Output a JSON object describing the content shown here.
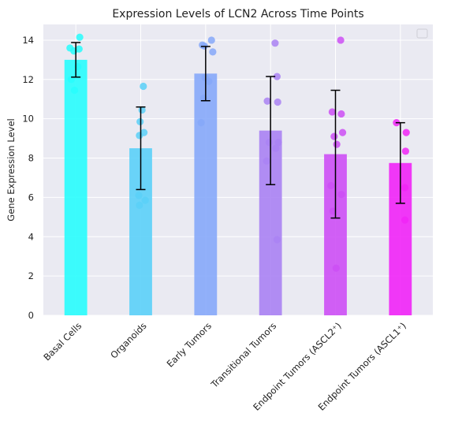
{
  "chart_data": {
    "type": "bar",
    "title": "Expression Levels of LCN2 Across Time Points",
    "xlabel": "",
    "ylabel": "Gene Expression Level",
    "ylim": [
      0,
      14.8
    ],
    "yticks": [
      0,
      2,
      4,
      6,
      8,
      10,
      12,
      14
    ],
    "grid": true,
    "legend": "top-right (empty)",
    "categories": [
      "Basal Cells",
      "Organoids",
      "Early Tumors",
      "Transitional Tumors",
      "Endpoint Tumors (ASCL2⁺)",
      "Endpoint Tumors (ASCL1⁺)"
    ],
    "values": [
      13.0,
      8.5,
      12.3,
      9.4,
      8.2,
      7.75
    ],
    "errors": [
      0.88,
      2.1,
      1.38,
      2.75,
      3.25,
      2.05
    ],
    "colors": [
      "#28fdfd",
      "#5bd0f8",
      "#86a8f9",
      "#aa82f3",
      "#cd4ff5",
      "#f124f7"
    ],
    "points": [
      [
        14.15,
        13.6,
        13.55,
        13.45,
        12.65,
        12.0,
        11.45
      ],
      [
        11.65,
        10.45,
        9.85,
        9.3,
        9.15,
        6.1,
        5.85,
        5.6
      ],
      [
        14.0,
        13.75,
        13.7,
        13.4,
        12.1,
        11.9,
        11.05,
        9.8
      ],
      [
        13.85,
        12.15,
        10.9,
        10.85,
        8.8,
        8.8,
        8.5,
        7.85,
        3.85
      ],
      [
        14.0,
        10.35,
        10.25,
        9.3,
        9.1,
        8.7,
        6.6,
        6.15,
        5.3,
        2.4
      ],
      [
        9.8,
        9.3,
        8.35,
        6.5,
        4.85
      ]
    ],
    "jitter": [
      [
        0.06,
        -0.09,
        0.05,
        -0.03,
        0.03,
        -0.07,
        -0.02
      ],
      [
        0.04,
        0.02,
        -0.01,
        0.05,
        -0.02,
        -0.03,
        0.07,
        -0.02
      ],
      [
        0.09,
        -0.05,
        -0.02,
        0.11,
        -0.01,
        0.05,
        -0.03,
        -0.07
      ],
      [
        0.07,
        0.1,
        -0.05,
        0.11,
        -0.02,
        0.12,
        0.08,
        -0.06,
        0.1
      ],
      [
        0.08,
        -0.05,
        0.09,
        0.11,
        -0.02,
        0.02,
        -0.07,
        0.09,
        -0.04,
        0.01
      ],
      [
        -0.06,
        0.09,
        0.08,
        0.07,
        0.07
      ]
    ]
  }
}
